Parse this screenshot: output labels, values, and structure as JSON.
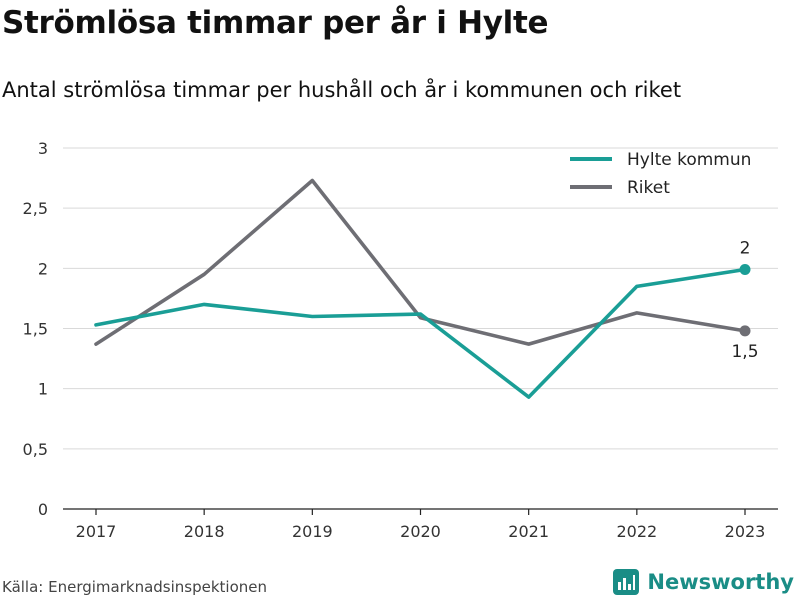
{
  "header": {
    "title": "Strömlösa timmar per år i Hylte",
    "subtitle": "Antal strömlösa timmar per hushåll och år i kommunen och riket"
  },
  "footer": {
    "source": "Källa: Energimarknadsinspektionen",
    "brand": "Newsworthy"
  },
  "colors": {
    "hylte": "#1a9e96",
    "riket": "#6e6e74",
    "grid": "#d9d9d9",
    "axis": "#222222",
    "brand": "#1a8d86"
  },
  "chart_data": {
    "type": "line",
    "title": "Strömlösa timmar per år i Hylte",
    "subtitle": "Antal strömlösa timmar per hushåll och år i kommunen och riket",
    "xlabel": "",
    "ylabel": "",
    "categories": [
      "2017",
      "2018",
      "2019",
      "2020",
      "2021",
      "2022",
      "2023"
    ],
    "ylim": [
      0,
      3
    ],
    "yticks": [
      0,
      0.5,
      1,
      1.5,
      2,
      2.5,
      3
    ],
    "ytick_labels": [
      "0",
      "0,5",
      "1",
      "1,5",
      "2",
      "2,5",
      "3"
    ],
    "grid": true,
    "legend_position": "top-right",
    "series": [
      {
        "name": "Hylte kommun",
        "color": "#1a9e96",
        "values": [
          1.53,
          1.7,
          1.6,
          1.62,
          0.93,
          1.85,
          1.99
        ],
        "end_label": "2"
      },
      {
        "name": "Riket",
        "color": "#6e6e74",
        "values": [
          1.37,
          1.95,
          2.73,
          1.59,
          1.37,
          1.63,
          1.48
        ],
        "end_label": "1,5"
      }
    ]
  }
}
